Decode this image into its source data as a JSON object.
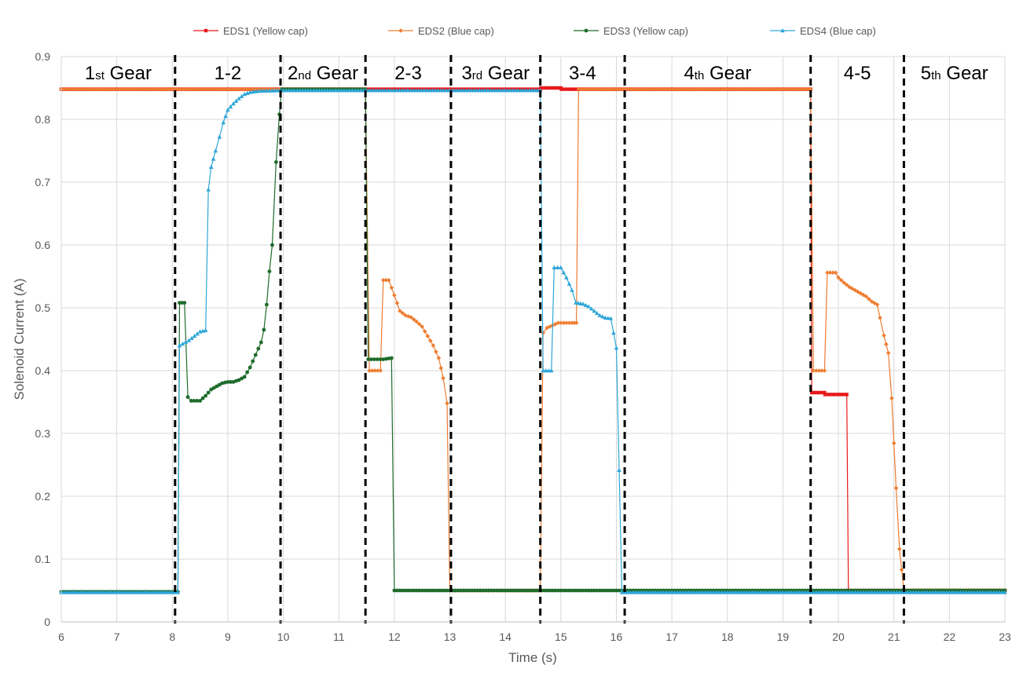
{
  "chart_data": {
    "type": "line",
    "title": "",
    "xlabel": "Time (s)",
    "ylabel": "Solenoid Current (A)",
    "xlim": [
      6,
      23
    ],
    "ylim": [
      0,
      0.9
    ],
    "xticks": [
      "6",
      "7",
      "8",
      "9",
      "10",
      "11",
      "12",
      "13",
      "14",
      "15",
      "16",
      "17",
      "18",
      "19",
      "20",
      "21",
      "22",
      "23"
    ],
    "yticks": [
      "0",
      "0.1",
      "0.2",
      "0.3",
      "0.4",
      "0.5",
      "0.6",
      "0.7",
      "0.8",
      "0.9"
    ],
    "grid": true,
    "legend_position": "top",
    "shift_boundaries": [
      8.05,
      9.95,
      11.48,
      13.02,
      14.63,
      16.15,
      19.5,
      21.18
    ],
    "regions": [
      {
        "x_start": 6,
        "x_end": 8.05,
        "main": "1",
        "sub": "st",
        "rest": " Gear"
      },
      {
        "x_start": 8.05,
        "x_end": 9.95,
        "main": "1-2",
        "sub": "",
        "rest": ""
      },
      {
        "x_start": 9.95,
        "x_end": 11.48,
        "main": "2",
        "sub": "nd",
        "rest": " Gear"
      },
      {
        "x_start": 11.48,
        "x_end": 13.02,
        "main": "2-3",
        "sub": "",
        "rest": ""
      },
      {
        "x_start": 13.02,
        "x_end": 14.63,
        "main": "3",
        "sub": "rd",
        "rest": " Gear"
      },
      {
        "x_start": 14.63,
        "x_end": 16.15,
        "main": "3-4",
        "sub": "",
        "rest": ""
      },
      {
        "x_start": 16.15,
        "x_end": 19.5,
        "main": "4",
        "sub": "th",
        "rest": " Gear"
      },
      {
        "x_start": 19.5,
        "x_end": 21.18,
        "main": "4-5",
        "sub": "",
        "rest": ""
      },
      {
        "x_start": 21.18,
        "x_end": 23,
        "main": "5",
        "sub": "th",
        "rest": " Gear"
      }
    ],
    "series": [
      {
        "name": "EDS1 (Yellow cap)",
        "color": "#e8191b",
        "marker": "square",
        "points": [
          [
            6,
            0.848
          ],
          [
            14.63,
            0.848
          ],
          [
            14.64,
            0.85
          ],
          [
            15.0,
            0.85
          ],
          [
            15.01,
            0.848
          ],
          [
            19.5,
            0.848
          ],
          [
            19.52,
            0.365
          ],
          [
            19.75,
            0.365
          ],
          [
            19.76,
            0.362
          ],
          [
            20.15,
            0.362
          ],
          [
            20.18,
            0.05
          ],
          [
            23,
            0.05
          ]
        ]
      },
      {
        "name": "EDS2 (Blue cap)",
        "color": "#ed7d31",
        "marker": "diamond",
        "points": [
          [
            6,
            0.848
          ],
          [
            11.48,
            0.848
          ],
          [
            11.55,
            0.4
          ],
          [
            11.75,
            0.4
          ],
          [
            11.8,
            0.544
          ],
          [
            11.9,
            0.544
          ],
          [
            12.0,
            0.52
          ],
          [
            12.1,
            0.495
          ],
          [
            12.2,
            0.488
          ],
          [
            12.3,
            0.485
          ],
          [
            12.4,
            0.478
          ],
          [
            12.5,
            0.47
          ],
          [
            12.6,
            0.455
          ],
          [
            12.7,
            0.44
          ],
          [
            12.8,
            0.42
          ],
          [
            12.88,
            0.388
          ],
          [
            12.95,
            0.348
          ],
          [
            13.0,
            0.05
          ],
          [
            14.63,
            0.05
          ],
          [
            14.68,
            0.46
          ],
          [
            14.75,
            0.468
          ],
          [
            14.85,
            0.472
          ],
          [
            14.95,
            0.476
          ],
          [
            15.1,
            0.476
          ],
          [
            15.2,
            0.476
          ],
          [
            15.28,
            0.476
          ],
          [
            15.32,
            0.848
          ],
          [
            19.5,
            0.848
          ],
          [
            19.55,
            0.4
          ],
          [
            19.75,
            0.4
          ],
          [
            19.8,
            0.556
          ],
          [
            19.95,
            0.556
          ],
          [
            20.0,
            0.548
          ],
          [
            20.1,
            0.54
          ],
          [
            20.2,
            0.533
          ],
          [
            20.3,
            0.528
          ],
          [
            20.4,
            0.523
          ],
          [
            20.5,
            0.518
          ],
          [
            20.6,
            0.51
          ],
          [
            20.7,
            0.505
          ],
          [
            20.75,
            0.484
          ],
          [
            20.82,
            0.456
          ],
          [
            20.9,
            0.428
          ],
          [
            20.96,
            0.356
          ],
          [
            21.04,
            0.213
          ],
          [
            21.1,
            0.116
          ],
          [
            21.18,
            0.05
          ],
          [
            23,
            0.05
          ]
        ]
      },
      {
        "name": "EDS3 (Yellow cap)",
        "color": "#1e6b2a",
        "marker": "circle",
        "points": [
          [
            6,
            0.048
          ],
          [
            8.1,
            0.048
          ],
          [
            8.13,
            0.508
          ],
          [
            8.22,
            0.508
          ],
          [
            8.28,
            0.358
          ],
          [
            8.34,
            0.352
          ],
          [
            8.5,
            0.352
          ],
          [
            8.6,
            0.36
          ],
          [
            8.7,
            0.37
          ],
          [
            8.8,
            0.375
          ],
          [
            8.9,
            0.38
          ],
          [
            9.0,
            0.382
          ],
          [
            9.1,
            0.382
          ],
          [
            9.2,
            0.385
          ],
          [
            9.3,
            0.39
          ],
          [
            9.4,
            0.405
          ],
          [
            9.5,
            0.425
          ],
          [
            9.6,
            0.445
          ],
          [
            9.65,
            0.465
          ],
          [
            9.7,
            0.505
          ],
          [
            9.75,
            0.558
          ],
          [
            9.8,
            0.6
          ],
          [
            9.87,
            0.732
          ],
          [
            9.93,
            0.808
          ],
          [
            9.97,
            0.848
          ],
          [
            11.48,
            0.848
          ],
          [
            11.53,
            0.418
          ],
          [
            11.8,
            0.418
          ],
          [
            11.95,
            0.42
          ],
          [
            12.0,
            0.05
          ],
          [
            23,
            0.05
          ]
        ]
      },
      {
        "name": "EDS4 (Blue cap)",
        "color": "#2ea7d8",
        "marker": "triangle",
        "points": [
          [
            6,
            0.047
          ],
          [
            8.1,
            0.047
          ],
          [
            8.13,
            0.44
          ],
          [
            8.3,
            0.448
          ],
          [
            8.4,
            0.455
          ],
          [
            8.5,
            0.462
          ],
          [
            8.6,
            0.464
          ],
          [
            8.65,
            0.688
          ],
          [
            8.7,
            0.724
          ],
          [
            8.78,
            0.75
          ],
          [
            8.85,
            0.772
          ],
          [
            8.92,
            0.795
          ],
          [
            9.0,
            0.815
          ],
          [
            9.1,
            0.825
          ],
          [
            9.2,
            0.833
          ],
          [
            9.3,
            0.84
          ],
          [
            9.4,
            0.843
          ],
          [
            9.55,
            0.845
          ],
          [
            9.95,
            0.846
          ],
          [
            14.63,
            0.846
          ],
          [
            14.68,
            0.4
          ],
          [
            14.83,
            0.4
          ],
          [
            14.88,
            0.564
          ],
          [
            15.0,
            0.564
          ],
          [
            15.1,
            0.548
          ],
          [
            15.2,
            0.528
          ],
          [
            15.27,
            0.508
          ],
          [
            15.4,
            0.506
          ],
          [
            15.5,
            0.502
          ],
          [
            15.6,
            0.495
          ],
          [
            15.7,
            0.488
          ],
          [
            15.8,
            0.484
          ],
          [
            15.9,
            0.483
          ],
          [
            15.95,
            0.46
          ],
          [
            16.0,
            0.436
          ],
          [
            16.1,
            0.047
          ],
          [
            23,
            0.047
          ]
        ]
      }
    ]
  }
}
